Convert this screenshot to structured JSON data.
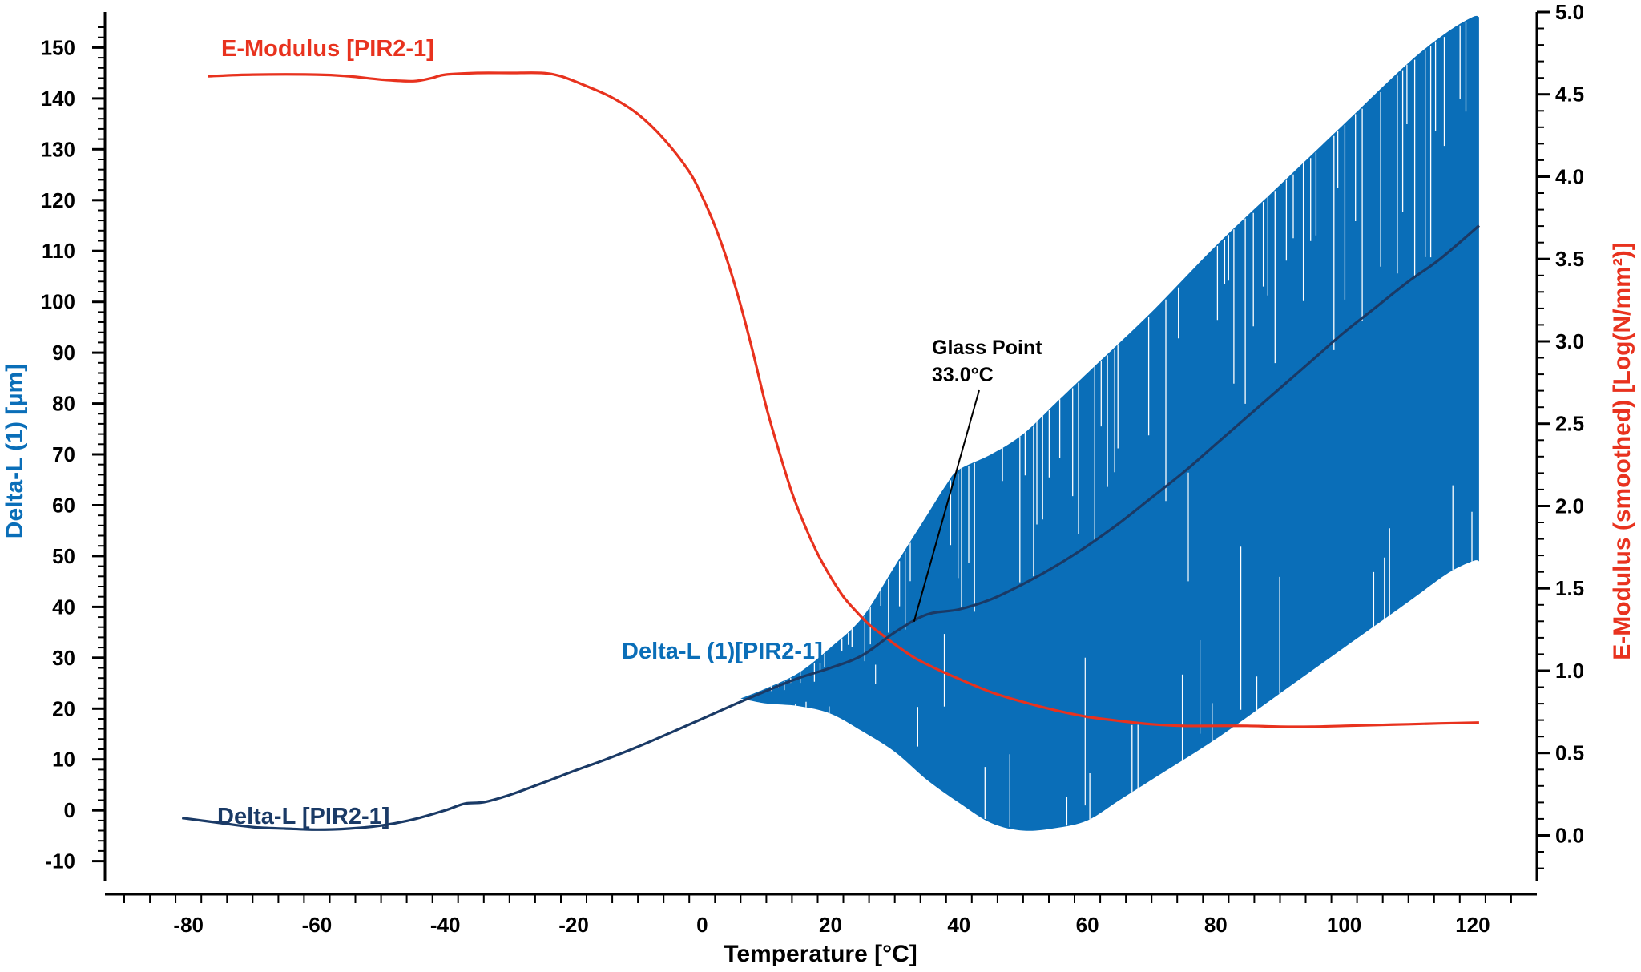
{
  "chart_data": {
    "type": "line",
    "xlabel": "Temperature [°C]",
    "ylabel_left": "Delta-L (1) [µm]",
    "ylabel_right": "E-Modulus (smoothed) [Log(N/mm²)]",
    "xlim": [
      -93,
      130
    ],
    "ylim_left": [
      -14,
      157
    ],
    "ylim_right": [
      -0.28,
      5.0
    ],
    "x_ticks": [
      "-80",
      "-60",
      "-40",
      "-20",
      "0",
      "20",
      "40",
      "60",
      "80",
      "100",
      "120"
    ],
    "y_left_ticks": [
      "-10",
      "0",
      "10",
      "20",
      "30",
      "40",
      "50",
      "60",
      "70",
      "80",
      "90",
      "100",
      "110",
      "120",
      "130",
      "140",
      "150"
    ],
    "y_right_ticks": [
      "0.0",
      "0.5",
      "1.0",
      "1.5",
      "2.0",
      "2.5",
      "3.0",
      "3.5",
      "4.0",
      "4.5",
      "5.0"
    ],
    "colors": {
      "e_modulus": "#e8321e",
      "delta_l": "#1a3a66",
      "delta_l_oscillation": "#0a6eb8",
      "axis": "#000000"
    },
    "labels": {
      "e_modulus": "E-Modulus [PIR2-1]",
      "delta_l": "Delta-L [PIR2-1]",
      "delta_l_oscillation": "Delta-L (1)[PIR2-1]"
    },
    "annotation": {
      "line1": "Glass Point",
      "line2": "33.0°C",
      "x": 33.0
    },
    "series": [
      {
        "name": "E-Modulus [PIR2-1]",
        "axis": "right",
        "x": [
          -77,
          -70,
          -60,
          -55,
          -50,
          -45,
          -42,
          -40,
          -35,
          -30,
          -25,
          -22,
          -18,
          -14,
          -10,
          -6,
          -2,
          0,
          2,
          4,
          6,
          8,
          10,
          12,
          14,
          16,
          18,
          20,
          22,
          24,
          26,
          28,
          30,
          33,
          36,
          40,
          45,
          50,
          55,
          60,
          65,
          70,
          75,
          80,
          85,
          90,
          95,
          100,
          105,
          110,
          115,
          121
        ],
        "y": [
          4.61,
          4.62,
          4.62,
          4.61,
          4.59,
          4.58,
          4.6,
          4.62,
          4.63,
          4.63,
          4.63,
          4.61,
          4.55,
          4.48,
          4.38,
          4.23,
          4.03,
          3.88,
          3.7,
          3.48,
          3.22,
          2.92,
          2.6,
          2.33,
          2.08,
          1.88,
          1.71,
          1.57,
          1.45,
          1.36,
          1.28,
          1.22,
          1.16,
          1.08,
          1.02,
          0.95,
          0.87,
          0.81,
          0.76,
          0.72,
          0.695,
          0.675,
          0.665,
          0.665,
          0.665,
          0.66,
          0.66,
          0.665,
          0.67,
          0.675,
          0.68,
          0.685
        ]
      },
      {
        "name": "Delta-L [PIR2-1]",
        "axis": "left",
        "x": [
          -81,
          -75,
          -70,
          -65,
          -60,
          -55,
          -50,
          -45,
          -40,
          -37,
          -34,
          -30,
          -25,
          -20,
          -15,
          -10,
          -5,
          0,
          5,
          10,
          15,
          20,
          25,
          30,
          35,
          40,
          45,
          50,
          55,
          60,
          65,
          70,
          75,
          80,
          85,
          90,
          95,
          100,
          105,
          110,
          115,
          121
        ],
        "y": [
          -1.5,
          -2.5,
          -3.3,
          -3.6,
          -3.8,
          -3.6,
          -3.0,
          -1.8,
          0.0,
          1.3,
          1.6,
          3.0,
          5.3,
          7.7,
          10.0,
          12.5,
          15.2,
          18.0,
          20.8,
          23.5,
          26.0,
          28.0,
          30.5,
          35.0,
          38.5,
          39.5,
          41.5,
          44.5,
          48.0,
          52.0,
          56.5,
          61.5,
          66.5,
          72.0,
          77.5,
          83.0,
          88.5,
          94.0,
          99.0,
          104.0,
          108.5,
          115.0
        ]
      },
      {
        "name": "Delta-L (1)[PIR2-1]",
        "axis": "left",
        "band_upper": {
          "x": [
            6,
            10,
            15,
            20,
            25,
            30,
            35,
            38,
            40,
            45,
            50,
            55,
            60,
            70,
            80,
            90,
            100,
            110,
            116,
            120,
            121
          ],
          "y": [
            22,
            24,
            27,
            32,
            38,
            48,
            58,
            64,
            67,
            70,
            74,
            80,
            86,
            98,
            111,
            123,
            135,
            147,
            153,
            156,
            156
          ]
        },
        "band_lower": {
          "x": [
            6,
            10,
            15,
            20,
            25,
            30,
            35,
            40,
            45,
            50,
            55,
            60,
            65,
            70,
            80,
            90,
            100,
            110,
            116,
            120,
            121
          ],
          "y": [
            22,
            21,
            20.5,
            19,
            15.5,
            11.5,
            6,
            1.5,
            -2.5,
            -4,
            -3.5,
            -2,
            2,
            6,
            14,
            23,
            32,
            41,
            46.5,
            49,
            49
          ]
        }
      }
    ]
  }
}
